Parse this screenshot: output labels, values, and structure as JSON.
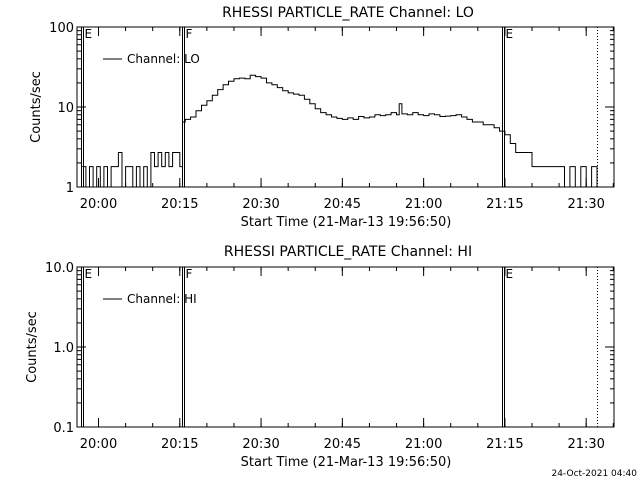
{
  "footer": {
    "timestamp": "24-Oct-2021 04:40"
  },
  "chart_data": [
    {
      "type": "line",
      "title": "RHESSI PARTICLE_RATE Channel: LO",
      "xlabel": "Start Time (21-Mar-13 19:56:50)",
      "ylabel": "Counts/sec",
      "yscale": "log",
      "ylim": [
        1,
        100
      ],
      "xlim_minutes": [
        -0.8,
        98.3
      ],
      "yticks": [
        1,
        10,
        100
      ],
      "ytick_labels": [
        "1",
        "10",
        "100"
      ],
      "xticks": [
        "20:00",
        "20:15",
        "20:30",
        "20:45",
        "21:00",
        "21:15",
        "21:30"
      ],
      "legend": {
        "label": "Channel: LO",
        "position": "top-left"
      },
      "markers": [
        {
          "label": "E",
          "style": "solid",
          "time": "19:56:50"
        },
        {
          "label": "F",
          "style": "solid",
          "time": "20:15:25"
        },
        {
          "label": "E",
          "style": "solid",
          "time": "21:14:30"
        },
        {
          "label": "",
          "style": "dotted",
          "time": "21:32:00"
        }
      ],
      "series": [
        {
          "name": "Channel: LO",
          "x": [
            "19:57:00",
            "19:57:40",
            "19:58:20",
            "19:59:00",
            "19:59:40",
            "20:00:20",
            "20:01:00",
            "20:01:40",
            "20:02:20",
            "20:03:00",
            "20:03:40",
            "20:04:20",
            "20:05:00",
            "20:05:40",
            "20:06:20",
            "20:07:00",
            "20:07:40",
            "20:08:20",
            "20:09:00",
            "20:09:40",
            "20:10:20",
            "20:11:00",
            "20:11:40",
            "20:12:20",
            "20:13:00",
            "20:13:40",
            "20:14:20",
            "20:15:00",
            "20:15:30",
            "20:16:00",
            "20:17:00",
            "20:18:00",
            "20:19:00",
            "20:20:00",
            "20:21:00",
            "20:22:00",
            "20:23:00",
            "20:24:00",
            "20:25:00",
            "20:26:00",
            "20:27:00",
            "20:28:00",
            "20:29:00",
            "20:30:00",
            "20:31:00",
            "20:32:00",
            "20:33:00",
            "20:34:00",
            "20:35:00",
            "20:36:00",
            "20:37:00",
            "20:38:00",
            "20:39:00",
            "20:40:00",
            "20:41:00",
            "20:42:00",
            "20:43:00",
            "20:44:00",
            "20:45:00",
            "20:46:00",
            "20:47:00",
            "20:48:00",
            "20:49:00",
            "20:50:00",
            "20:51:00",
            "20:52:00",
            "20:53:00",
            "20:54:00",
            "20:55:00",
            "20:55:30",
            "20:56:00",
            "20:57:00",
            "20:58:00",
            "20:59:00",
            "21:00:00",
            "21:01:00",
            "21:02:00",
            "21:03:00",
            "21:04:00",
            "21:05:00",
            "21:06:00",
            "21:07:00",
            "21:08:00",
            "21:09:00",
            "21:10:00",
            "21:11:00",
            "21:12:00",
            "21:13:00",
            "21:14:00",
            "21:15:00",
            "21:16:00",
            "21:17:00",
            "21:18:00",
            "21:19:00",
            "21:20:00",
            "21:21:00",
            "21:22:00",
            "21:23:00",
            "21:24:00",
            "21:25:00",
            "21:26:00",
            "21:27:00",
            "21:28:00",
            "21:29:00",
            "21:30:00",
            "21:31:00",
            "21:32:00"
          ],
          "values": [
            1.8,
            1.0,
            1.8,
            1.0,
            1.8,
            1.0,
            1.8,
            1.0,
            1.8,
            1.8,
            2.7,
            1.0,
            1.8,
            1.8,
            1.0,
            1.8,
            1.0,
            1.8,
            1.0,
            2.7,
            1.8,
            2.7,
            1.8,
            2.7,
            1.8,
            2.7,
            2.7,
            1.8,
            6.5,
            7.0,
            7.5,
            9.0,
            10.5,
            12.0,
            14.0,
            16.5,
            19.0,
            21.0,
            22.5,
            23.0,
            22.5,
            25.0,
            24.0,
            23.0,
            20.0,
            19.0,
            17.5,
            16.0,
            15.0,
            14.5,
            14.0,
            12.5,
            11.0,
            9.5,
            8.5,
            8.0,
            7.5,
            7.2,
            7.0,
            7.3,
            7.0,
            7.6,
            7.3,
            7.5,
            8.0,
            7.8,
            8.0,
            8.5,
            8.0,
            11.0,
            8.2,
            8.0,
            8.5,
            8.0,
            7.8,
            8.2,
            8.0,
            7.6,
            7.7,
            7.8,
            8.0,
            7.5,
            7.0,
            6.5,
            6.5,
            6.0,
            6.0,
            5.5,
            5.0,
            4.5,
            3.5,
            2.7,
            2.7,
            2.7,
            1.8,
            1.8,
            1.8,
            1.8,
            1.8,
            1.8,
            1.0,
            1.8,
            1.0,
            1.8,
            1.0,
            1.8,
            1.0
          ]
        }
      ]
    },
    {
      "type": "line",
      "title": "RHESSI PARTICLE_RATE Channel: HI",
      "xlabel": "Start Time (21-Mar-13 19:56:50)",
      "ylabel": "Counts/sec",
      "yscale": "log",
      "ylim": [
        0.1,
        10
      ],
      "xlim_minutes": [
        -0.8,
        98.3
      ],
      "yticks": [
        0.1,
        1,
        10
      ],
      "ytick_labels": [
        "0.1",
        "1.0",
        "10.0"
      ],
      "xticks": [
        "20:00",
        "20:15",
        "20:30",
        "20:45",
        "21:00",
        "21:15",
        "21:30"
      ],
      "legend": {
        "label": "Channel: HI",
        "position": "top-left"
      },
      "markers": [
        {
          "label": "E",
          "style": "solid",
          "time": "19:56:50"
        },
        {
          "label": "F",
          "style": "solid",
          "time": "20:15:25"
        },
        {
          "label": "E",
          "style": "solid",
          "time": "21:14:30"
        },
        {
          "label": "",
          "style": "dotted",
          "time": "21:32:00"
        }
      ],
      "series": [
        {
          "name": "Channel: HI",
          "x": [],
          "values": []
        }
      ]
    }
  ]
}
